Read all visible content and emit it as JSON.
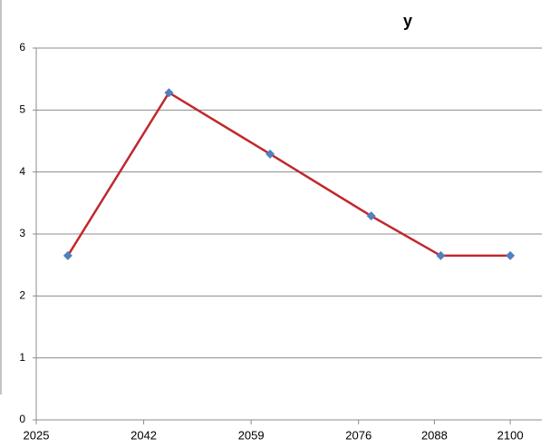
{
  "chart_data": {
    "type": "line",
    "title": "y",
    "x": [
      2030,
      2046,
      2062,
      2078,
      2089,
      2100
    ],
    "series": [
      {
        "name": "y",
        "color": "#c0282d",
        "marker_color": "#4f81bd",
        "values": [
          2.65,
          5.28,
          4.29,
          3.29,
          2.65,
          2.65
        ]
      }
    ],
    "xlim": [
      2025,
      2105
    ],
    "xticks": [
      2025,
      2042,
      2059,
      2076,
      2088,
      2100
    ],
    "ylim": [
      0,
      6
    ],
    "yticks": [
      0,
      1,
      2,
      3,
      4,
      5,
      6
    ],
    "grid": true
  }
}
